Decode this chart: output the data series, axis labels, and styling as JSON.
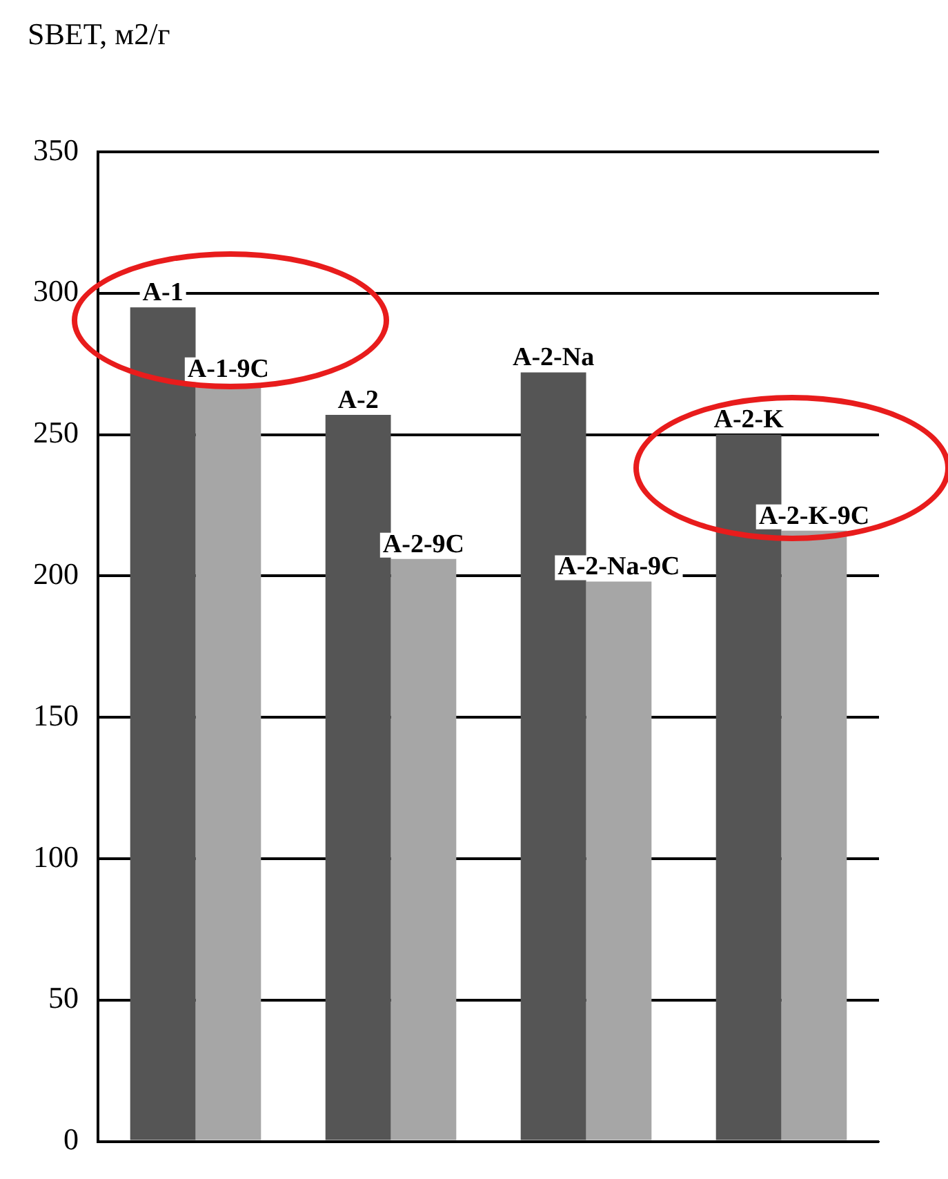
{
  "chart_data": {
    "type": "bar",
    "title": "SBET, м2/г",
    "categories": [
      null,
      null,
      null,
      null
    ],
    "series": [
      {
        "color": "#555555",
        "values": [
          295,
          257,
          272,
          250
        ],
        "value_labels": [
          "A-1",
          "A-2",
          "A-2-Na",
          "A-2-K"
        ]
      },
      {
        "color": "#a6a6a6",
        "values": [
          268,
          206,
          198,
          216
        ],
        "value_labels": [
          "A-1-9C",
          "A-2-9C",
          "A-2-Na-9C",
          "A-2-K-9C"
        ]
      }
    ],
    "ylim": [
      0,
      350
    ],
    "yticks": [
      0,
      50,
      100,
      150,
      200,
      250,
      300,
      350
    ],
    "grid": "y",
    "legend": false
  }
}
